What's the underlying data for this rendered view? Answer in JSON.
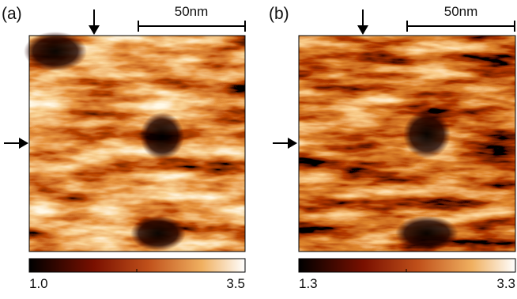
{
  "panels": [
    {
      "label": "(a)",
      "scale_bar": "50nm",
      "colorbar": {
        "min": "1.0",
        "max": "3.5"
      }
    },
    {
      "label": "(b)",
      "scale_bar": "50nm",
      "colorbar": {
        "min": "1.3",
        "max": "3.3"
      }
    }
  ]
}
